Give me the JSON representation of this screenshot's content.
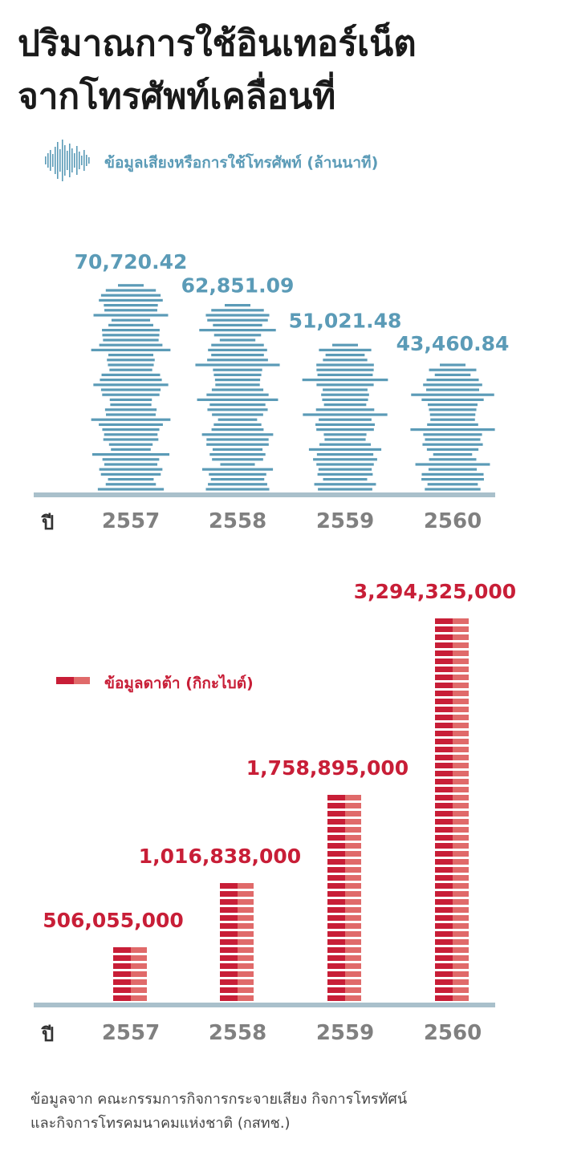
{
  "title": {
    "line1": "ปริมาณการใช้อินเทอร์เน็ต",
    "line2": "จากโทรศัพท์เคลื่อนที่"
  },
  "colors": {
    "voice": "#5b9bb7",
    "data_dark": "#c81e37",
    "data_light": "#e06a6a",
    "baseline": "#a9c0cb",
    "tick": "#808080",
    "title": "#1a1a1a"
  },
  "chart_data": [
    {
      "type": "bar",
      "legend": "ข้อมูลเสียงหรือการใช้โทรศัพท์ (ล้านนาที)",
      "legend_icon": "sound-wave-icon",
      "xlabel": "ปี",
      "categories": [
        "2557",
        "2558",
        "2559",
        "2560"
      ],
      "values": [
        70720.42,
        62851.09,
        51021.48,
        43460.84
      ],
      "value_labels": [
        "70,720.42",
        "62,851.09",
        "51,021.48",
        "43,460.84"
      ],
      "ylim": [
        0,
        80000
      ],
      "grid": false
    },
    {
      "type": "bar",
      "legend": "ข้อมูลดาต้า (กิกะไบต์)",
      "legend_icon": "data-bar-icon",
      "xlabel": "ปี",
      "categories": [
        "2557",
        "2558",
        "2559",
        "2560"
      ],
      "values": [
        506055000,
        1016838000,
        1758895000,
        3294325000
      ],
      "value_labels": [
        "506,055,000",
        "1,016,838,000",
        "1,758,895,000",
        "3,294,325,000"
      ],
      "ylim": [
        0,
        3500000000
      ],
      "grid": false
    }
  ],
  "footer": {
    "line1": "ข้อมูลจาก คณะกรรมการกิจการกระจายเสียง กิจการโทรทัศน์",
    "line2": "และกิจการโทรคมนาคมแห่งชาติ (กสทช.)"
  }
}
